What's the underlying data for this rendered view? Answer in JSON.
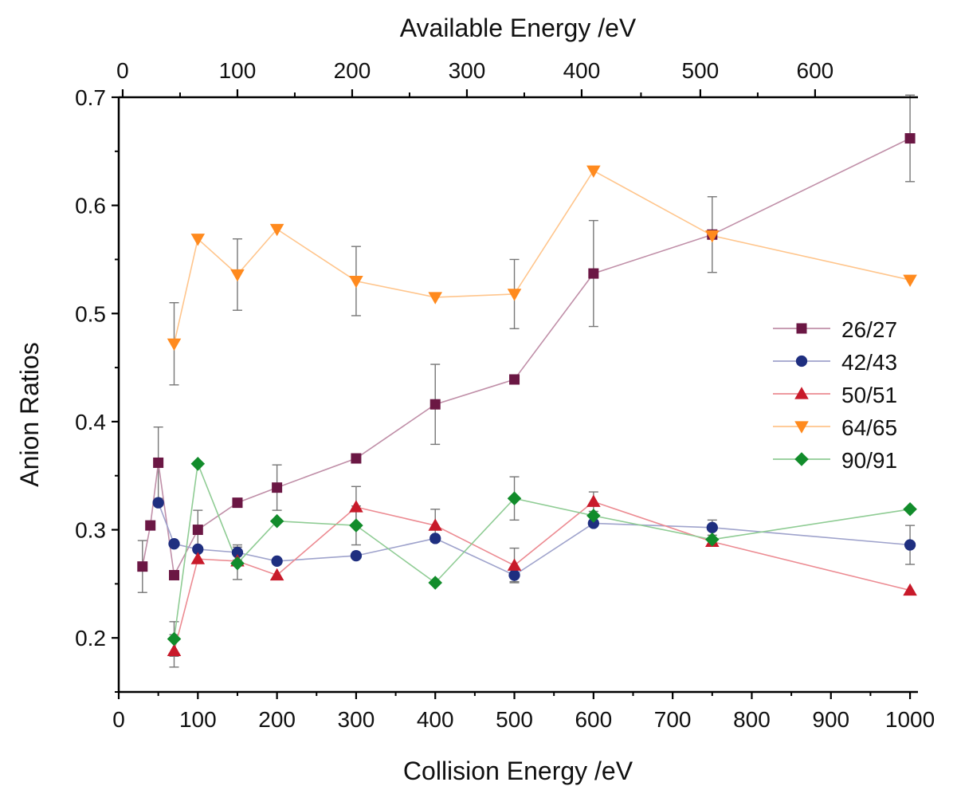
{
  "chart_data": {
    "type": "line",
    "xlabel": "Collision Energy /eV",
    "x2label": "Available Energy /eV",
    "ylabel": "Anion Ratios",
    "xlim": [
      0,
      1010
    ],
    "ylim": [
      0.15,
      0.7
    ],
    "x_ticks": [
      "0",
      "100",
      "200",
      "300",
      "400",
      "500",
      "600",
      "700",
      "800",
      "900",
      "1000"
    ],
    "x_tick_values": [
      0,
      100,
      200,
      300,
      400,
      500,
      600,
      700,
      800,
      900,
      1000
    ],
    "y_ticks": [
      "0.2",
      "0.3",
      "0.4",
      "0.5",
      "0.6",
      "0.7"
    ],
    "y_tick_values": [
      0.2,
      0.3,
      0.4,
      0.5,
      0.6,
      0.7
    ],
    "x2_ticks": [
      "0",
      "100",
      "200",
      "300",
      "400",
      "500",
      "600"
    ],
    "x2_tick_collision_values": [
      5,
      150,
      295,
      440,
      585,
      735,
      880
    ],
    "legend_position": "right",
    "series": [
      {
        "name": "26/27",
        "marker": "square",
        "marker_color": "#6b1744",
        "line_color": "#c08fa8",
        "points": [
          {
            "x": 30,
            "y": 0.266,
            "err": 0.024
          },
          {
            "x": 40,
            "y": 0.304
          },
          {
            "x": 50,
            "y": 0.362,
            "err": 0.033
          },
          {
            "x": 70,
            "y": 0.258
          },
          {
            "x": 100,
            "y": 0.3,
            "err": 0.018
          },
          {
            "x": 150,
            "y": 0.325
          },
          {
            "x": 200,
            "y": 0.339,
            "err": 0.021
          },
          {
            "x": 300,
            "y": 0.366
          },
          {
            "x": 400,
            "y": 0.416,
            "err": 0.037
          },
          {
            "x": 500,
            "y": 0.439
          },
          {
            "x": 600,
            "y": 0.537,
            "err": 0.049
          },
          {
            "x": 750,
            "y": 0.573,
            "err": 0.035
          },
          {
            "x": 1000,
            "y": 0.662,
            "err": 0.04
          }
        ]
      },
      {
        "name": "42/43",
        "marker": "circle",
        "marker_color": "#1f2f80",
        "line_color": "#9fa3cc",
        "points": [
          {
            "x": 50,
            "y": 0.325
          },
          {
            "x": 70,
            "y": 0.287
          },
          {
            "x": 100,
            "y": 0.282
          },
          {
            "x": 150,
            "y": 0.279,
            "err": 0.007
          },
          {
            "x": 200,
            "y": 0.271
          },
          {
            "x": 300,
            "y": 0.276
          },
          {
            "x": 400,
            "y": 0.292
          },
          {
            "x": 500,
            "y": 0.258,
            "err": 0.006
          },
          {
            "x": 600,
            "y": 0.306
          },
          {
            "x": 750,
            "y": 0.302,
            "err": 0.007
          },
          {
            "x": 1000,
            "y": 0.286,
            "err": 0.018
          }
        ]
      },
      {
        "name": "50/51",
        "marker": "triangle-up",
        "marker_color": "#c81a2a",
        "line_color": "#ec8b92",
        "points": [
          {
            "x": 70,
            "y": 0.188,
            "err": 0.015
          },
          {
            "x": 100,
            "y": 0.273
          },
          {
            "x": 150,
            "y": 0.271
          },
          {
            "x": 200,
            "y": 0.258
          },
          {
            "x": 300,
            "y": 0.321,
            "err": 0.019
          },
          {
            "x": 400,
            "y": 0.304,
            "err": 0.015
          },
          {
            "x": 500,
            "y": 0.267,
            "err": 0.016
          },
          {
            "x": 600,
            "y": 0.326,
            "err": 0.009
          },
          {
            "x": 750,
            "y": 0.289
          },
          {
            "x": 1000,
            "y": 0.244
          }
        ]
      },
      {
        "name": "64/65",
        "marker": "triangle-down",
        "marker_color": "#ff8a1e",
        "line_color": "#ffc58c",
        "points": [
          {
            "x": 70,
            "y": 0.472,
            "err": 0.038
          },
          {
            "x": 100,
            "y": 0.569
          },
          {
            "x": 150,
            "y": 0.536,
            "err": 0.033
          },
          {
            "x": 200,
            "y": 0.578
          },
          {
            "x": 300,
            "y": 0.53,
            "err": 0.032
          },
          {
            "x": 400,
            "y": 0.515
          },
          {
            "x": 500,
            "y": 0.518,
            "err": 0.032
          },
          {
            "x": 600,
            "y": 0.632
          },
          {
            "x": 750,
            "y": 0.572
          },
          {
            "x": 1000,
            "y": 0.531
          }
        ]
      },
      {
        "name": "90/91",
        "marker": "diamond",
        "marker_color": "#128c2b",
        "line_color": "#8fcc94",
        "points": [
          {
            "x": 70,
            "y": 0.199,
            "err": 0.016
          },
          {
            "x": 100,
            "y": 0.361
          },
          {
            "x": 150,
            "y": 0.269,
            "err": 0.015
          },
          {
            "x": 200,
            "y": 0.308
          },
          {
            "x": 300,
            "y": 0.304,
            "err": 0.018
          },
          {
            "x": 400,
            "y": 0.251
          },
          {
            "x": 500,
            "y": 0.329,
            "err": 0.02
          },
          {
            "x": 600,
            "y": 0.313
          },
          {
            "x": 750,
            "y": 0.291
          },
          {
            "x": 1000,
            "y": 0.319
          }
        ]
      }
    ]
  }
}
